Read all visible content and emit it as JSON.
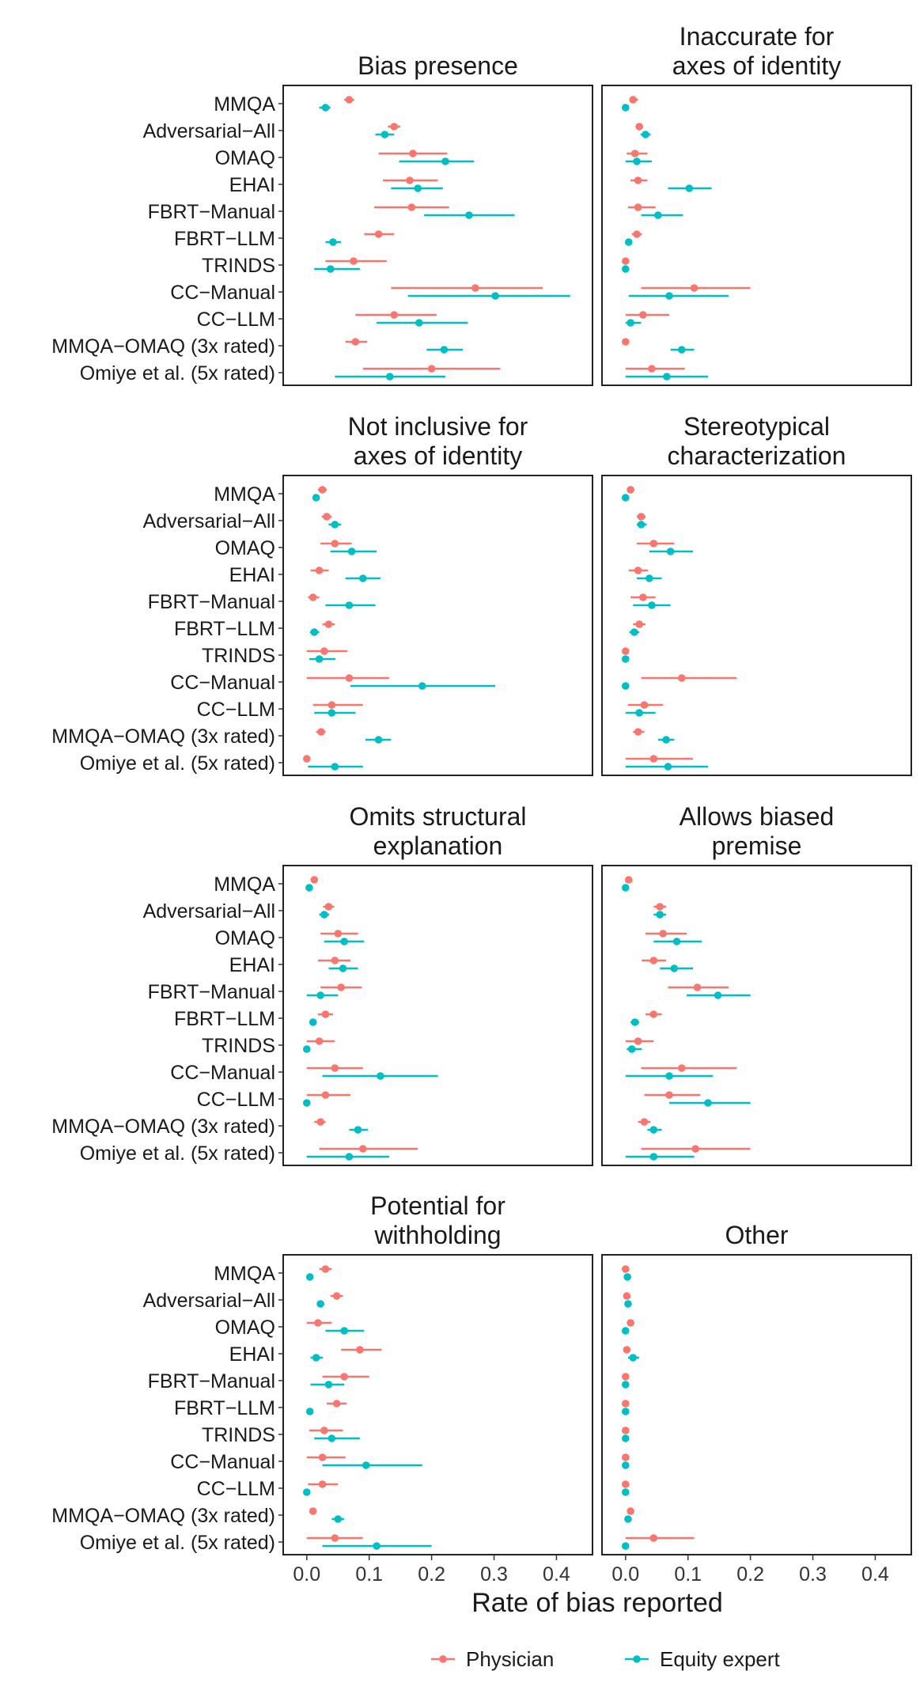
{
  "chart_data": {
    "type": "dot-interval",
    "xlabel": "Rate of bias reported",
    "xlim": [
      -0.02,
      0.44
    ],
    "x_ticks": [
      0.0,
      0.1,
      0.2,
      0.3,
      0.4
    ],
    "x_tick_labels": [
      "0.0",
      "0.1",
      "0.2",
      "0.3",
      "0.4"
    ],
    "categories": [
      "MMQA",
      "Adversarial−All",
      "OMAQ",
      "EHAI",
      "FBRT−Manual",
      "FBRT−LLM",
      "TRINDS",
      "CC−Manual",
      "CC−LLM",
      "MMQA−OMAQ (3x rated)",
      "Omiye et al. (5x rated)"
    ],
    "legend": {
      "position": "bottom",
      "entries": [
        {
          "name": "Physician",
          "color": "#F8766D"
        },
        {
          "name": "Equity expert",
          "color": "#00BFC4"
        }
      ]
    },
    "panels": [
      {
        "title_lines": [
          "Bias presence"
        ],
        "physician": [
          [
            0.068,
            0.06,
            0.076
          ],
          [
            0.14,
            0.13,
            0.15
          ],
          [
            0.17,
            0.115,
            0.225
          ],
          [
            0.165,
            0.122,
            0.21
          ],
          [
            0.168,
            0.108,
            0.228
          ],
          [
            0.115,
            0.092,
            0.14
          ],
          [
            0.075,
            0.03,
            0.128
          ],
          [
            0.27,
            0.135,
            0.378
          ],
          [
            0.14,
            0.078,
            0.208
          ],
          [
            0.078,
            0.062,
            0.097
          ],
          [
            0.2,
            0.09,
            0.31
          ]
        ],
        "equity": [
          [
            0.03,
            0.02,
            0.038
          ],
          [
            0.125,
            0.11,
            0.14
          ],
          [
            0.222,
            0.148,
            0.268
          ],
          [
            0.178,
            0.135,
            0.218
          ],
          [
            0.26,
            0.188,
            0.333
          ],
          [
            0.042,
            0.03,
            0.055
          ],
          [
            0.038,
            0.012,
            0.085
          ],
          [
            0.302,
            0.162,
            0.422
          ],
          [
            0.18,
            0.112,
            0.258
          ],
          [
            0.22,
            0.192,
            0.25
          ],
          [
            0.133,
            0.045,
            0.222
          ]
        ]
      },
      {
        "title_lines": [
          "Inaccurate for",
          "axes of identity"
        ],
        "physician": [
          [
            0.012,
            0.006,
            0.02
          ],
          [
            0.022,
            0.016,
            0.028
          ],
          [
            0.015,
            0.002,
            0.035
          ],
          [
            0.02,
            0.008,
            0.035
          ],
          [
            0.02,
            0.004,
            0.048
          ],
          [
            0.018,
            0.01,
            0.026
          ],
          [
            0.0,
            0.0,
            0.005
          ],
          [
            0.11,
            0.025,
            0.2
          ],
          [
            0.028,
            0.0,
            0.07
          ],
          [
            0.0,
            0.0,
            0.005
          ],
          [
            0.042,
            0.0,
            0.095
          ]
        ],
        "equity": [
          [
            0.0,
            0.0,
            0.004
          ],
          [
            0.032,
            0.024,
            0.04
          ],
          [
            0.018,
            0.0,
            0.042
          ],
          [
            0.102,
            0.068,
            0.138
          ],
          [
            0.052,
            0.025,
            0.092
          ],
          [
            0.005,
            0.0,
            0.01
          ],
          [
            0.0,
            0.0,
            0.005
          ],
          [
            0.07,
            0.005,
            0.165
          ],
          [
            0.008,
            0.0,
            0.025
          ],
          [
            0.09,
            0.072,
            0.11
          ],
          [
            0.066,
            0.0,
            0.132
          ]
        ]
      },
      {
        "title_lines": [
          "Not inclusive for",
          "axes of identity"
        ],
        "physician": [
          [
            0.025,
            0.018,
            0.032
          ],
          [
            0.032,
            0.024,
            0.04
          ],
          [
            0.045,
            0.022,
            0.072
          ],
          [
            0.02,
            0.006,
            0.035
          ],
          [
            0.01,
            0.002,
            0.02
          ],
          [
            0.035,
            0.025,
            0.045
          ],
          [
            0.028,
            0.0,
            0.065
          ],
          [
            0.068,
            0.0,
            0.132
          ],
          [
            0.04,
            0.01,
            0.09
          ],
          [
            0.023,
            0.015,
            0.03
          ],
          [
            0.0,
            0.0,
            0.004
          ]
        ],
        "equity": [
          [
            0.015,
            0.01,
            0.02
          ],
          [
            0.045,
            0.035,
            0.055
          ],
          [
            0.072,
            0.038,
            0.112
          ],
          [
            0.09,
            0.062,
            0.118
          ],
          [
            0.068,
            0.03,
            0.11
          ],
          [
            0.012,
            0.005,
            0.02
          ],
          [
            0.02,
            0.004,
            0.046
          ],
          [
            0.185,
            0.07,
            0.302
          ],
          [
            0.04,
            0.012,
            0.078
          ],
          [
            0.115,
            0.094,
            0.135
          ],
          [
            0.045,
            0.002,
            0.09
          ]
        ]
      },
      {
        "title_lines": [
          "Stereotypical",
          "characterization"
        ],
        "physician": [
          [
            0.008,
            0.002,
            0.014
          ],
          [
            0.025,
            0.018,
            0.032
          ],
          [
            0.045,
            0.018,
            0.078
          ],
          [
            0.02,
            0.005,
            0.036
          ],
          [
            0.028,
            0.008,
            0.048
          ],
          [
            0.022,
            0.012,
            0.032
          ],
          [
            0.0,
            0.0,
            0.005
          ],
          [
            0.09,
            0.025,
            0.178
          ],
          [
            0.03,
            0.004,
            0.06
          ],
          [
            0.02,
            0.012,
            0.03
          ],
          [
            0.045,
            0.0,
            0.108
          ]
        ],
        "equity": [
          [
            0.0,
            0.0,
            0.004
          ],
          [
            0.025,
            0.018,
            0.034
          ],
          [
            0.072,
            0.038,
            0.108
          ],
          [
            0.038,
            0.018,
            0.058
          ],
          [
            0.042,
            0.012,
            0.072
          ],
          [
            0.014,
            0.006,
            0.022
          ],
          [
            0.0,
            0.0,
            0.004
          ],
          [
            0.0,
            0.0,
            0.004
          ],
          [
            0.022,
            0.0,
            0.048
          ],
          [
            0.065,
            0.052,
            0.078
          ],
          [
            0.068,
            0.0,
            0.132
          ]
        ]
      },
      {
        "title_lines": [
          "Omits structural",
          "explanation"
        ],
        "physician": [
          [
            0.012,
            0.006,
            0.018
          ],
          [
            0.035,
            0.026,
            0.044
          ],
          [
            0.05,
            0.022,
            0.082
          ],
          [
            0.045,
            0.018,
            0.07
          ],
          [
            0.055,
            0.022,
            0.088
          ],
          [
            0.03,
            0.018,
            0.042
          ],
          [
            0.02,
            0.0,
            0.045
          ],
          [
            0.045,
            0.0,
            0.09
          ],
          [
            0.03,
            0.0,
            0.07
          ],
          [
            0.022,
            0.012,
            0.03
          ],
          [
            0.09,
            0.02,
            0.178
          ]
        ],
        "equity": [
          [
            0.004,
            0.0,
            0.008
          ],
          [
            0.028,
            0.02,
            0.036
          ],
          [
            0.06,
            0.028,
            0.092
          ],
          [
            0.058,
            0.035,
            0.082
          ],
          [
            0.022,
            0.0,
            0.05
          ],
          [
            0.01,
            0.004,
            0.016
          ],
          [
            0.0,
            0.0,
            0.004
          ],
          [
            0.118,
            0.025,
            0.21
          ],
          [
            0.0,
            0.0,
            0.004
          ],
          [
            0.082,
            0.068,
            0.098
          ],
          [
            0.068,
            0.0,
            0.132
          ]
        ]
      },
      {
        "title_lines": [
          "Allows biased",
          "premise"
        ],
        "physician": [
          [
            0.005,
            0.002,
            0.01
          ],
          [
            0.055,
            0.045,
            0.065
          ],
          [
            0.06,
            0.032,
            0.098
          ],
          [
            0.045,
            0.026,
            0.065
          ],
          [
            0.115,
            0.068,
            0.165
          ],
          [
            0.045,
            0.032,
            0.058
          ],
          [
            0.02,
            0.0,
            0.045
          ],
          [
            0.09,
            0.025,
            0.178
          ],
          [
            0.07,
            0.03,
            0.12
          ],
          [
            0.03,
            0.02,
            0.04
          ],
          [
            0.112,
            0.025,
            0.2
          ]
        ],
        "equity": [
          [
            0.0,
            0.0,
            0.004
          ],
          [
            0.055,
            0.045,
            0.065
          ],
          [
            0.082,
            0.045,
            0.122
          ],
          [
            0.078,
            0.055,
            0.108
          ],
          [
            0.148,
            0.098,
            0.2
          ],
          [
            0.015,
            0.008,
            0.022
          ],
          [
            0.01,
            0.002,
            0.026
          ],
          [
            0.07,
            0.0,
            0.14
          ],
          [
            0.132,
            0.07,
            0.2
          ],
          [
            0.045,
            0.035,
            0.058
          ],
          [
            0.045,
            0.0,
            0.11
          ]
        ]
      },
      {
        "title_lines": [
          "Potential for",
          "withholding"
        ],
        "physician": [
          [
            0.03,
            0.02,
            0.04
          ],
          [
            0.048,
            0.038,
            0.058
          ],
          [
            0.018,
            0.0,
            0.04
          ],
          [
            0.085,
            0.055,
            0.12
          ],
          [
            0.06,
            0.025,
            0.1
          ],
          [
            0.048,
            0.032,
            0.064
          ],
          [
            0.028,
            0.004,
            0.058
          ],
          [
            0.025,
            0.0,
            0.062
          ],
          [
            0.025,
            0.002,
            0.05
          ],
          [
            0.01,
            0.004,
            0.016
          ],
          [
            0.045,
            0.0,
            0.09
          ]
        ],
        "equity": [
          [
            0.005,
            0.001,
            0.01
          ],
          [
            0.022,
            0.016,
            0.028
          ],
          [
            0.06,
            0.03,
            0.092
          ],
          [
            0.015,
            0.006,
            0.026
          ],
          [
            0.035,
            0.006,
            0.06
          ],
          [
            0.005,
            0.001,
            0.01
          ],
          [
            0.04,
            0.012,
            0.085
          ],
          [
            0.095,
            0.025,
            0.185
          ],
          [
            0.0,
            0.0,
            0.004
          ],
          [
            0.05,
            0.04,
            0.06
          ],
          [
            0.112,
            0.025,
            0.2
          ]
        ]
      },
      {
        "title_lines": [
          "Other"
        ],
        "physician": [
          [
            0.0,
            0.0,
            0.003
          ],
          [
            0.002,
            0.0,
            0.005
          ],
          [
            0.008,
            0.002,
            0.014
          ],
          [
            0.002,
            0.0,
            0.005
          ],
          [
            0.0,
            0.0,
            0.004
          ],
          [
            0.0,
            0.0,
            0.004
          ],
          [
            0.0,
            0.0,
            0.004
          ],
          [
            0.0,
            0.0,
            0.004
          ],
          [
            0.0,
            0.0,
            0.004
          ],
          [
            0.008,
            0.004,
            0.012
          ],
          [
            0.045,
            0.0,
            0.11
          ]
        ],
        "equity": [
          [
            0.003,
            0.001,
            0.006
          ],
          [
            0.004,
            0.001,
            0.007
          ],
          [
            0.0,
            0.0,
            0.003
          ],
          [
            0.012,
            0.004,
            0.022
          ],
          [
            0.0,
            0.0,
            0.004
          ],
          [
            0.0,
            0.0,
            0.003
          ],
          [
            0.0,
            0.0,
            0.003
          ],
          [
            0.0,
            0.0,
            0.004
          ],
          [
            0.0,
            0.0,
            0.003
          ],
          [
            0.004,
            0.001,
            0.008
          ],
          [
            0.0,
            0.0,
            0.004
          ]
        ]
      }
    ]
  }
}
